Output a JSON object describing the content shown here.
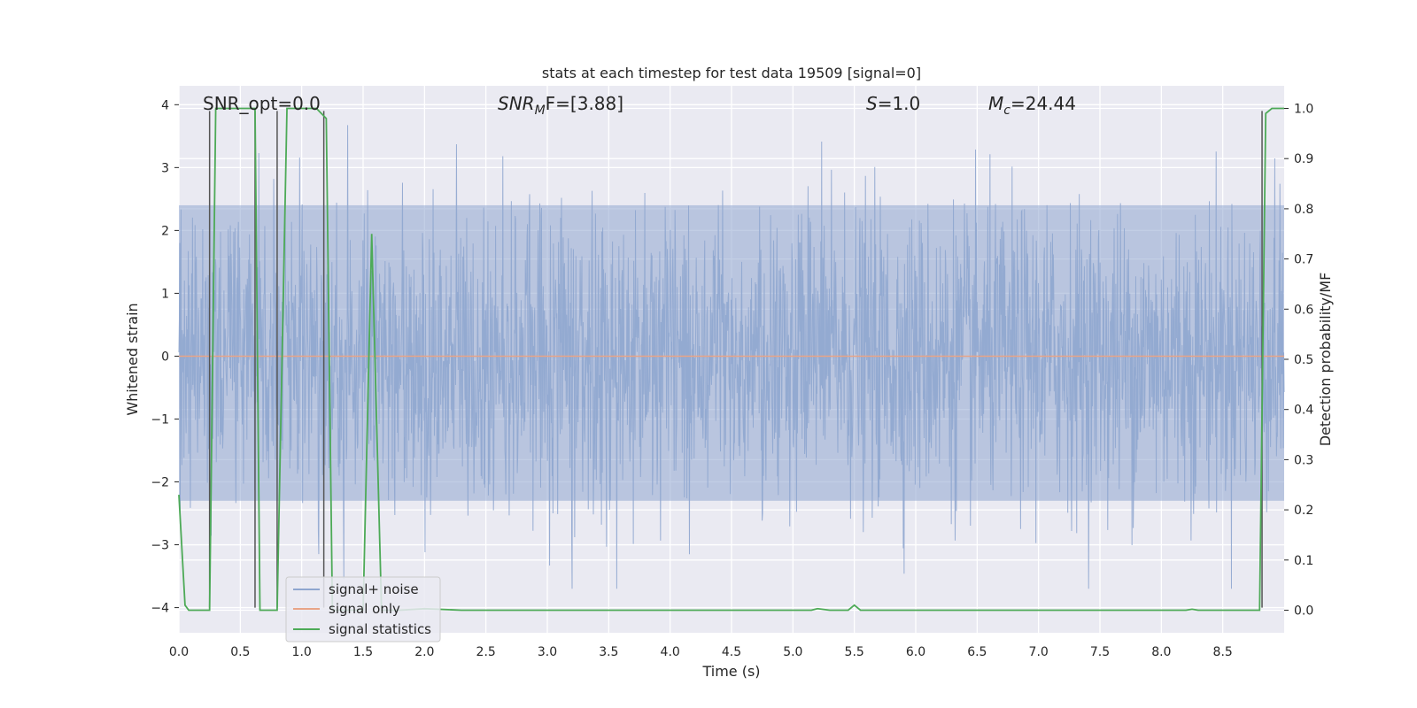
{
  "chart_data": {
    "type": "line",
    "title": "stats at each timestep for test data 19509 [signal=0]",
    "xlabel": "Time (s)",
    "ylabel": "Whitened strain",
    "y2label": "Detection probability/MF",
    "xlim": [
      0.0,
      9.0
    ],
    "ylim": [
      -4.4,
      4.3
    ],
    "y2lim": [
      -0.045,
      1.045
    ],
    "xticks": [
      0.0,
      0.5,
      1.0,
      1.5,
      2.0,
      2.5,
      3.0,
      3.5,
      4.0,
      4.5,
      5.0,
      5.5,
      6.0,
      6.5,
      7.0,
      7.5,
      8.0,
      8.5
    ],
    "yticks": [
      4,
      3,
      2,
      1,
      0,
      -1,
      -2,
      -3,
      -4
    ],
    "y2ticks": [
      1.0,
      0.9,
      0.8,
      0.7,
      0.6,
      0.5,
      0.4,
      0.3,
      0.2,
      0.1,
      0.0
    ],
    "grid": true,
    "legend_placement": "lower-left",
    "annotations": {
      "snr_opt": "SNR_opt=0.0",
      "snr_mf_main": "SNR",
      "snr_mf_sub": "M",
      "snr_mf_rest": "F=[3.88]",
      "s_main": "S",
      "s_rest": "=1.0",
      "mc_main": "M",
      "mc_sub": "c",
      "mc_rest": "=24.44"
    },
    "series": [
      {
        "name": "signal+ noise",
        "color": "#8fa6cf",
        "description_of_values": "whitened strain noise, roughly Gaussian, amplitude within about -3.7 to 3.9",
        "envelope_hi": 2.4,
        "envelope_lo": -2.3
      },
      {
        "name": "signal only",
        "color": "#e8a487",
        "values_constant": 0.0
      },
      {
        "name": "signal statistics",
        "color": "#4daa57",
        "x": [
          0.0,
          0.05,
          0.08,
          0.25,
          0.3,
          0.62,
          0.66,
          0.74,
          0.8,
          0.88,
          1.12,
          1.2,
          1.25,
          1.5,
          1.57,
          1.65,
          1.8,
          2.0,
          2.3,
          5.15,
          5.2,
          5.3,
          5.45,
          5.5,
          5.55,
          8.2,
          8.25,
          8.3,
          8.8,
          8.85,
          8.9,
          9.0
        ],
        "values": [
          0.23,
          0.01,
          0.0,
          0.0,
          1.0,
          1.0,
          0.0,
          0.0,
          0.0,
          1.0,
          1.0,
          0.98,
          0.0,
          0.0,
          0.75,
          0.0,
          0.0,
          0.003,
          0.0,
          0.0,
          0.003,
          0.0,
          0.0,
          0.01,
          0.0,
          0.0,
          0.002,
          0.0,
          0.0,
          0.99,
          1.0,
          1.0
        ]
      }
    ],
    "vertical_markers_x": [
      0.25,
      0.62,
      0.8,
      1.18,
      8.82
    ]
  }
}
